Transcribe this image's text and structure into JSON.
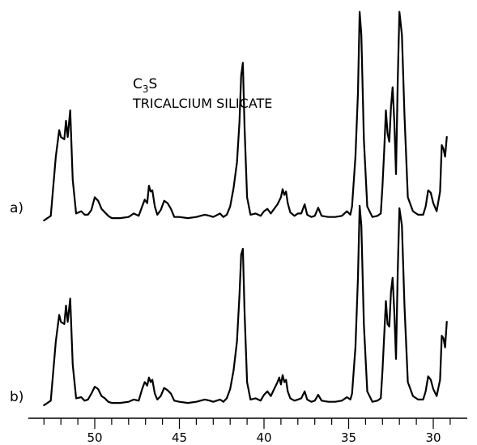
{
  "chart_data": {
    "type": "line",
    "title": "",
    "xlabel": "",
    "ylabel": "",
    "xlim": [
      53.6,
      28.6
    ],
    "x_reversed": true,
    "x_ticks": [
      50,
      45,
      40,
      35,
      30
    ],
    "grid": false,
    "annotation": {
      "compound_prefix": "C",
      "compound_subscript": "3",
      "compound_suffix": "S",
      "name": "TRICALCIUM SILICATE"
    },
    "series": [
      {
        "name": "a)",
        "baseline_y": 0.15,
        "points": [
          [
            53.0,
            0.0
          ],
          [
            52.6,
            0.04
          ],
          [
            52.3,
            0.55
          ],
          [
            52.1,
            0.78
          ],
          [
            52.0,
            0.72
          ],
          [
            51.8,
            0.7
          ],
          [
            51.7,
            0.86
          ],
          [
            51.6,
            0.72
          ],
          [
            51.45,
            0.95
          ],
          [
            51.3,
            0.35
          ],
          [
            51.1,
            0.06
          ],
          [
            50.8,
            0.08
          ],
          [
            50.6,
            0.05
          ],
          [
            50.4,
            0.05
          ],
          [
            50.2,
            0.09
          ],
          [
            50.0,
            0.2
          ],
          [
            49.8,
            0.17
          ],
          [
            49.6,
            0.1
          ],
          [
            49.4,
            0.07
          ],
          [
            49.2,
            0.04
          ],
          [
            49.0,
            0.02
          ],
          [
            48.5,
            0.02
          ],
          [
            48.0,
            0.03
          ],
          [
            47.7,
            0.06
          ],
          [
            47.4,
            0.04
          ],
          [
            47.2,
            0.12
          ],
          [
            47.05,
            0.18
          ],
          [
            46.9,
            0.15
          ],
          [
            46.8,
            0.3
          ],
          [
            46.7,
            0.25
          ],
          [
            46.6,
            0.26
          ],
          [
            46.45,
            0.12
          ],
          [
            46.3,
            0.05
          ],
          [
            46.1,
            0.09
          ],
          [
            45.9,
            0.17
          ],
          [
            45.7,
            0.15
          ],
          [
            45.5,
            0.1
          ],
          [
            45.3,
            0.03
          ],
          [
            45.0,
            0.03
          ],
          [
            44.5,
            0.02
          ],
          [
            44.0,
            0.03
          ],
          [
            43.5,
            0.05
          ],
          [
            43.2,
            0.04
          ],
          [
            43.0,
            0.03
          ],
          [
            42.6,
            0.06
          ],
          [
            42.4,
            0.03
          ],
          [
            42.2,
            0.05
          ],
          [
            42.0,
            0.12
          ],
          [
            41.8,
            0.28
          ],
          [
            41.6,
            0.5
          ],
          [
            41.45,
            0.85
          ],
          [
            41.35,
            1.25
          ],
          [
            41.25,
            1.36
          ],
          [
            41.15,
            0.8
          ],
          [
            41.0,
            0.2
          ],
          [
            40.8,
            0.05
          ],
          [
            40.5,
            0.06
          ],
          [
            40.2,
            0.04
          ],
          [
            40.0,
            0.08
          ],
          [
            39.8,
            0.1
          ],
          [
            39.6,
            0.06
          ],
          [
            39.4,
            0.1
          ],
          [
            39.2,
            0.14
          ],
          [
            39.0,
            0.2
          ],
          [
            38.9,
            0.27
          ],
          [
            38.8,
            0.22
          ],
          [
            38.7,
            0.25
          ],
          [
            38.6,
            0.15
          ],
          [
            38.45,
            0.07
          ],
          [
            38.2,
            0.04
          ],
          [
            38.0,
            0.06
          ],
          [
            37.8,
            0.06
          ],
          [
            37.6,
            0.14
          ],
          [
            37.45,
            0.05
          ],
          [
            37.2,
            0.03
          ],
          [
            37.0,
            0.04
          ],
          [
            36.8,
            0.11
          ],
          [
            36.6,
            0.04
          ],
          [
            36.2,
            0.03
          ],
          [
            35.8,
            0.03
          ],
          [
            35.4,
            0.04
          ],
          [
            35.1,
            0.08
          ],
          [
            34.9,
            0.05
          ],
          [
            34.8,
            0.12
          ],
          [
            34.6,
            0.55
          ],
          [
            34.45,
            1.1
          ],
          [
            34.35,
            1.8
          ],
          [
            34.25,
            1.6
          ],
          [
            34.1,
            0.7
          ],
          [
            33.9,
            0.12
          ],
          [
            33.6,
            0.03
          ],
          [
            33.3,
            0.04
          ],
          [
            33.1,
            0.06
          ],
          [
            33.0,
            0.3
          ],
          [
            32.9,
            0.6
          ],
          [
            32.8,
            0.95
          ],
          [
            32.7,
            0.75
          ],
          [
            32.6,
            0.68
          ],
          [
            32.5,
            0.98
          ],
          [
            32.4,
            1.15
          ],
          [
            32.3,
            0.85
          ],
          [
            32.2,
            0.4
          ],
          [
            32.1,
            1.2
          ],
          [
            32.0,
            1.8
          ],
          [
            31.85,
            1.6
          ],
          [
            31.7,
            0.9
          ],
          [
            31.5,
            0.2
          ],
          [
            31.2,
            0.08
          ],
          [
            30.9,
            0.05
          ],
          [
            30.6,
            0.05
          ],
          [
            30.45,
            0.12
          ],
          [
            30.3,
            0.26
          ],
          [
            30.15,
            0.24
          ],
          [
            30.0,
            0.15
          ],
          [
            29.8,
            0.08
          ],
          [
            29.6,
            0.25
          ],
          [
            29.5,
            0.65
          ],
          [
            29.4,
            0.62
          ],
          [
            29.3,
            0.55
          ],
          [
            29.2,
            0.72
          ]
        ]
      },
      {
        "name": "b)",
        "baseline_y": 0.0,
        "points": [
          [
            53.0,
            0.0
          ],
          [
            52.6,
            0.04
          ],
          [
            52.3,
            0.55
          ],
          [
            52.1,
            0.78
          ],
          [
            52.0,
            0.72
          ],
          [
            51.8,
            0.7
          ],
          [
            51.7,
            0.86
          ],
          [
            51.6,
            0.72
          ],
          [
            51.45,
            0.92
          ],
          [
            51.3,
            0.35
          ],
          [
            51.1,
            0.06
          ],
          [
            50.8,
            0.07
          ],
          [
            50.6,
            0.04
          ],
          [
            50.4,
            0.05
          ],
          [
            50.2,
            0.1
          ],
          [
            50.0,
            0.16
          ],
          [
            49.8,
            0.14
          ],
          [
            49.6,
            0.08
          ],
          [
            49.4,
            0.06
          ],
          [
            49.2,
            0.03
          ],
          [
            49.0,
            0.02
          ],
          [
            48.5,
            0.02
          ],
          [
            48.0,
            0.03
          ],
          [
            47.7,
            0.05
          ],
          [
            47.4,
            0.04
          ],
          [
            47.2,
            0.14
          ],
          [
            47.05,
            0.2
          ],
          [
            46.9,
            0.17
          ],
          [
            46.8,
            0.24
          ],
          [
            46.7,
            0.2
          ],
          [
            46.6,
            0.22
          ],
          [
            46.45,
            0.1
          ],
          [
            46.3,
            0.05
          ],
          [
            46.1,
            0.08
          ],
          [
            45.9,
            0.15
          ],
          [
            45.7,
            0.13
          ],
          [
            45.5,
            0.1
          ],
          [
            45.3,
            0.04
          ],
          [
            45.0,
            0.03
          ],
          [
            44.5,
            0.02
          ],
          [
            44.0,
            0.03
          ],
          [
            43.5,
            0.05
          ],
          [
            43.2,
            0.04
          ],
          [
            43.0,
            0.03
          ],
          [
            42.6,
            0.05
          ],
          [
            42.4,
            0.03
          ],
          [
            42.2,
            0.06
          ],
          [
            42.0,
            0.14
          ],
          [
            41.8,
            0.3
          ],
          [
            41.6,
            0.55
          ],
          [
            41.45,
            0.95
          ],
          [
            41.35,
            1.3
          ],
          [
            41.25,
            1.35
          ],
          [
            41.15,
            0.8
          ],
          [
            41.0,
            0.2
          ],
          [
            40.8,
            0.05
          ],
          [
            40.5,
            0.06
          ],
          [
            40.2,
            0.04
          ],
          [
            40.0,
            0.09
          ],
          [
            39.8,
            0.12
          ],
          [
            39.6,
            0.08
          ],
          [
            39.4,
            0.14
          ],
          [
            39.2,
            0.2
          ],
          [
            39.1,
            0.24
          ],
          [
            39.0,
            0.18
          ],
          [
            38.9,
            0.26
          ],
          [
            38.8,
            0.2
          ],
          [
            38.7,
            0.22
          ],
          [
            38.6,
            0.12
          ],
          [
            38.45,
            0.06
          ],
          [
            38.2,
            0.04
          ],
          [
            38.0,
            0.05
          ],
          [
            37.8,
            0.06
          ],
          [
            37.6,
            0.12
          ],
          [
            37.45,
            0.05
          ],
          [
            37.2,
            0.03
          ],
          [
            37.0,
            0.04
          ],
          [
            36.8,
            0.09
          ],
          [
            36.6,
            0.04
          ],
          [
            36.2,
            0.03
          ],
          [
            35.8,
            0.03
          ],
          [
            35.4,
            0.04
          ],
          [
            35.1,
            0.07
          ],
          [
            34.9,
            0.05
          ],
          [
            34.8,
            0.1
          ],
          [
            34.6,
            0.5
          ],
          [
            34.45,
            1.1
          ],
          [
            34.35,
            1.72
          ],
          [
            34.25,
            1.55
          ],
          [
            34.1,
            0.7
          ],
          [
            33.9,
            0.12
          ],
          [
            33.6,
            0.03
          ],
          [
            33.3,
            0.04
          ],
          [
            33.1,
            0.06
          ],
          [
            33.0,
            0.3
          ],
          [
            32.9,
            0.6
          ],
          [
            32.8,
            0.9
          ],
          [
            32.7,
            0.7
          ],
          [
            32.6,
            0.68
          ],
          [
            32.5,
            0.98
          ],
          [
            32.4,
            1.1
          ],
          [
            32.3,
            0.8
          ],
          [
            32.2,
            0.4
          ],
          [
            32.1,
            1.15
          ],
          [
            32.0,
            1.7
          ],
          [
            31.85,
            1.55
          ],
          [
            31.7,
            0.85
          ],
          [
            31.5,
            0.2
          ],
          [
            31.2,
            0.08
          ],
          [
            30.9,
            0.05
          ],
          [
            30.6,
            0.05
          ],
          [
            30.45,
            0.12
          ],
          [
            30.3,
            0.25
          ],
          [
            30.15,
            0.22
          ],
          [
            30.0,
            0.14
          ],
          [
            29.8,
            0.08
          ],
          [
            29.6,
            0.22
          ],
          [
            29.5,
            0.6
          ],
          [
            29.4,
            0.58
          ],
          [
            29.3,
            0.5
          ],
          [
            29.2,
            0.72
          ]
        ]
      }
    ]
  }
}
